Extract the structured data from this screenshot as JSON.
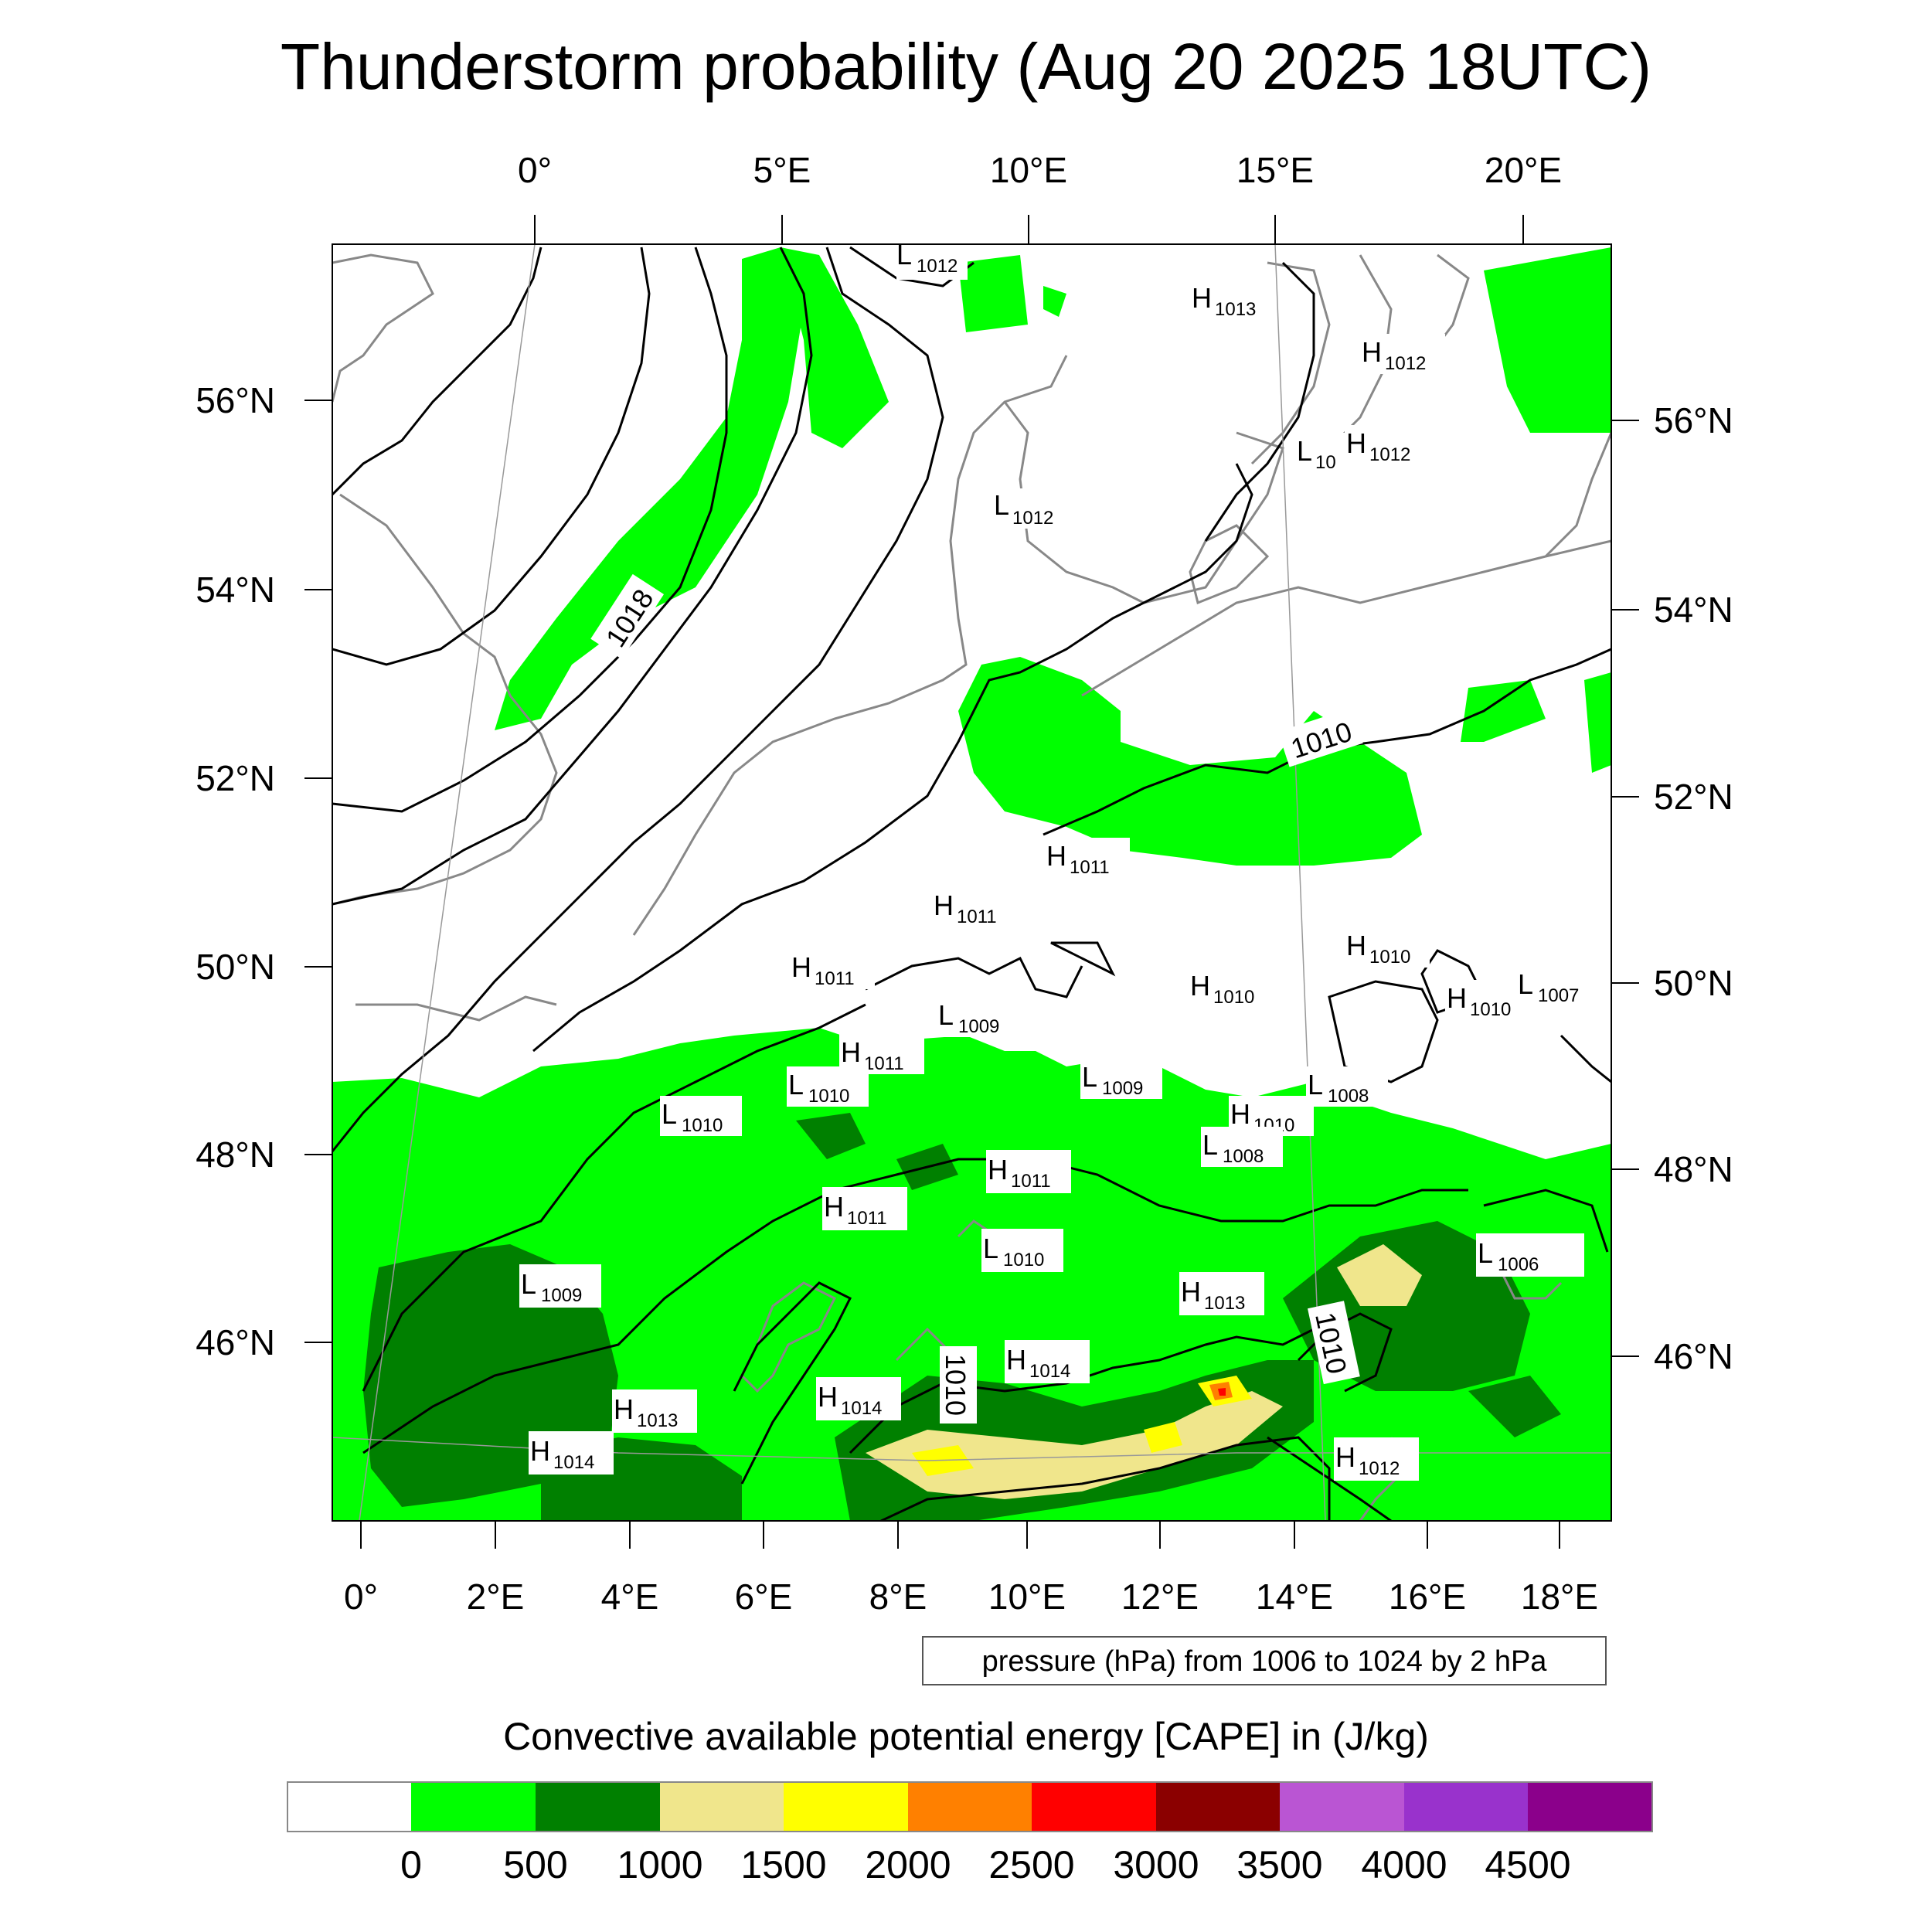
{
  "title": "Thunderstorm probability (Aug 20 2025 18UTC)",
  "top_lon_labels": [
    "0°",
    "5°E",
    "10°E",
    "15°E",
    "20°E"
  ],
  "bottom_lon_labels": [
    "0°",
    "2°E",
    "4°E",
    "6°E",
    "8°E",
    "10°E",
    "12°E",
    "14°E",
    "16°E",
    "18°E"
  ],
  "left_lat_labels": [
    "56°N",
    "54°N",
    "52°N",
    "50°N",
    "48°N",
    "46°N"
  ],
  "right_lat_labels": [
    "56°N",
    "54°N",
    "52°N",
    "50°N",
    "48°N",
    "46°N"
  ],
  "pressure_note": "pressure (hPa) from 1006 to 1024 by 2 hPa",
  "colorbar": {
    "title": "Convective available potential energy [CAPE] in (J/kg)",
    "colors": [
      "#ffffff",
      "#00ff00",
      "#008000",
      "#f0e68c",
      "#ffff00",
      "#ff8000",
      "#ff0000",
      "#8b0000",
      "#ba55d3",
      "#9932cc",
      "#8b008b"
    ],
    "tick_labels": [
      "0",
      "500",
      "1000",
      "1500",
      "2000",
      "2500",
      "3000",
      "3500",
      "4000",
      "4500"
    ]
  },
  "contour_labels": [
    "1018",
    "1010",
    "1010",
    "1010"
  ],
  "pressure_centers": [
    {
      "type": "L",
      "value": "1012"
    },
    {
      "type": "H",
      "value": "1013"
    },
    {
      "type": "H",
      "value": "1012"
    },
    {
      "type": "L",
      "value": "10"
    },
    {
      "type": "H",
      "value": "1012"
    },
    {
      "type": "L",
      "value": "1012"
    },
    {
      "type": "H",
      "value": "1011"
    },
    {
      "type": "H",
      "value": "1011"
    },
    {
      "type": "H",
      "value": "1011"
    },
    {
      "type": "L",
      "value": "1009"
    },
    {
      "type": "H",
      "value": "1011"
    },
    {
      "type": "L",
      "value": "1010"
    },
    {
      "type": "L",
      "value": "1010"
    },
    {
      "type": "L",
      "value": "1009"
    },
    {
      "type": "H",
      "value": "1010"
    },
    {
      "type": "H",
      "value": "1010"
    },
    {
      "type": "H",
      "value": "1010"
    },
    {
      "type": "L",
      "value": "1007"
    },
    {
      "type": "L",
      "value": "1008"
    },
    {
      "type": "H",
      "value": "1010"
    },
    {
      "type": "L",
      "value": "1008"
    },
    {
      "type": "H",
      "value": "1011"
    },
    {
      "type": "H",
      "value": "1011"
    },
    {
      "type": "L",
      "value": "1010"
    },
    {
      "type": "L",
      "value": "1006"
    },
    {
      "type": "L",
      "value": "1009"
    },
    {
      "type": "H",
      "value": "1013"
    },
    {
      "type": "H",
      "value": "1014"
    },
    {
      "type": "H",
      "value": "1014"
    },
    {
      "type": "H",
      "value": "1013"
    },
    {
      "type": "H",
      "value": "1014"
    },
    {
      "type": "H",
      "value": "1012"
    }
  ]
}
